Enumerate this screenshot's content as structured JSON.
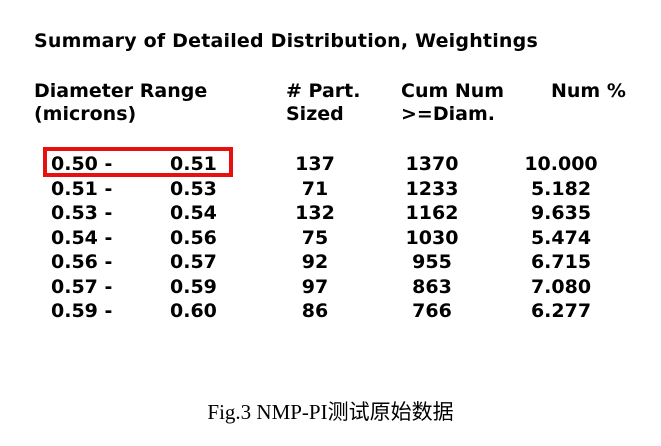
{
  "title": "Summary of Detailed Distribution, Weightings",
  "columns": {
    "diameter_line1": "Diameter Range",
    "diameter_line2": "(microns)",
    "part_line1": "# Part.",
    "part_line2": "Sized",
    "cum_line1": "Cum Num",
    "cum_line2": ">=Diam.",
    "pct_line1": "Num %"
  },
  "rows": [
    {
      "from": "0.50 -",
      "to": "0.51",
      "part": "137",
      "cum": "1370",
      "pct": "10.000",
      "highlighted": true
    },
    {
      "from": "0.51 -",
      "to": "0.53",
      "part": "71",
      "cum": "1233",
      "pct": "5.182"
    },
    {
      "from": "0.53 -",
      "to": "0.54",
      "part": "132",
      "cum": "1162",
      "pct": "9.635"
    },
    {
      "from": "0.54 -",
      "to": "0.56",
      "part": "75",
      "cum": "1030",
      "pct": "5.474"
    },
    {
      "from": "0.56 -",
      "to": "0.57",
      "part": "92",
      "cum": "955",
      "pct": "6.715"
    },
    {
      "from": "0.57 -",
      "to": "0.59",
      "part": "97",
      "cum": "863",
      "pct": "7.080"
    },
    {
      "from": "0.59 -",
      "to": "0.60",
      "part": "86",
      "cum": "766",
      "pct": "6.277"
    }
  ],
  "highlight_color": "#e8100f",
  "caption": "Fig.3  NMP-PI测试原始数据"
}
